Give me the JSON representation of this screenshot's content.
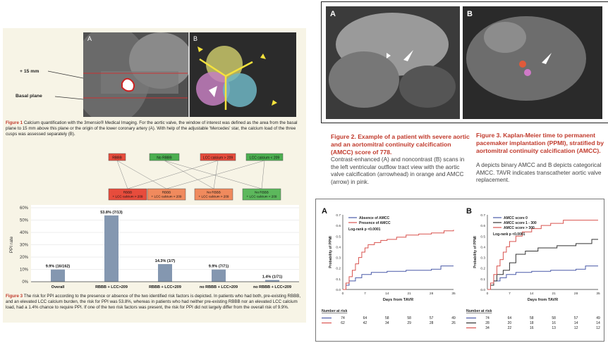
{
  "fig1": {
    "panel_a": "A",
    "panel_b": "B",
    "label_15mm": "+ 15 mm",
    "label_basal": "Basal plane",
    "caption_lead": "Figure 1",
    "caption": "Calcium quantification with the 3mensio® Medical Imaging. For the aortic valve, the window of interest was defined as the area from the basal plane to 15 mm above this plane or the origin of the lower coronary artery (A). With help of the adjustable 'Mercedes' star, the calcium load of the three cusps was assessed separately (B)."
  },
  "fig3left": {
    "tree_top": [
      "RBBB",
      "No RBBB",
      "LCC calcium > 209",
      "LCC calcium < 209"
    ],
    "tree_bottom": [
      "RBBB\n+ LCC calcium > 209",
      "RBBB\n+ LCC calcium < 209",
      "No RBBB\n+ LCC calcium > 209",
      "No RBBB\n+ LCC calcium < 209"
    ],
    "ylabel": "PPI rate",
    "caption_lead": "Figure 3",
    "caption": "The risk for PPI according to the presence or absence of the two identified risk factors is depicted. In patients who had both, pre-existing RBBB, and an elevated LCC calcium burden, the risk for PPI was 53.8%, whereas in patients who had neither pre-existing RBBB nor an elevated LCC calcium load, had a 1.4% chance to require PPI. If one of the two risk factors was present, the risk for PPI did not largely differ from the overall risk of 9.9%."
  },
  "fig2": {
    "panel_a": "A",
    "panel_b": "B",
    "title": "Figure 2. Example of a patient with severe aortic and an aortomitral continuity calcification (AMCC) score of 778.",
    "text": "Contrast-enhanced (A) and noncontrast (B) scans in the left ventricular outflow tract view with the aortic valve calcification (arrowhead) in orange and AMCC (arrow) in pink."
  },
  "fig3right": {
    "title": "Figure 3. Kaplan-Meier time to permanent pacemaker implantation (PPMI), stratified by aortomitral continuity calcification (AMCC).",
    "text": "A depicts binary AMCC and B depicts categorical AMCC. TAVR indicates transcatheter aortic valve replacement."
  },
  "km": {
    "logrank": "Log-rank p <0.0001",
    "nrisk_label": "Number at risk",
    "a_legend": [
      "Absence of AMCC",
      "Presence of AMCC"
    ],
    "b_legend": [
      "AMCC score 0",
      "AMCC score 1 - 300",
      "AMCC score > 300"
    ],
    "a_risk": [
      [
        "74",
        "64",
        "58",
        "58",
        "57",
        "49"
      ],
      [
        "62",
        "42",
        "34",
        "29",
        "28",
        "26"
      ]
    ],
    "b_risk": [
      [
        "74",
        "64",
        "58",
        "58",
        "57",
        "49"
      ],
      [
        "28",
        "20",
        "18",
        "16",
        "14",
        "14"
      ],
      [
        "34",
        "22",
        "16",
        "13",
        "12",
        "12"
      ]
    ]
  },
  "chart_data": [
    {
      "type": "bar",
      "categories": [
        "Overall",
        "RBBB + LCC>209",
        "RBBB + LCC<209",
        "no RBBB + LCC>209",
        "no RBBB + LCC<209"
      ],
      "values": [
        9.9,
        53.8,
        14.3,
        9.9,
        1.4
      ],
      "data_labels": [
        "9.9% (16/162)",
        "53.8% (7/13)",
        "14.3% (1/7)",
        "9.9% (7/71)",
        "1.4% (1/71)"
      ],
      "ylabel": "PPI rate",
      "yticks": [
        "0%",
        "10%",
        "20%",
        "30%",
        "40%",
        "50%",
        "60%"
      ],
      "ylim": [
        0,
        60
      ],
      "color": "#8497b0",
      "grid": true
    },
    {
      "type": "line",
      "panel": "A",
      "xlabel": "Days from TAVR",
      "ylabel": "Probability of PPMI",
      "xticks": [
        0,
        7,
        14,
        21,
        28,
        35
      ],
      "yticks": [
        0.0,
        0.1,
        0.2,
        0.3,
        0.4,
        0.5,
        0.6,
        0.7
      ],
      "xlim": [
        0,
        35
      ],
      "ylim": [
        0,
        0.7
      ],
      "series": [
        {
          "name": "Absence of AMCC",
          "color": "#4a5aa8",
          "x": [
            0,
            1,
            2,
            4,
            6,
            9,
            14,
            20,
            28,
            31,
            35
          ],
          "y": [
            0,
            0.04,
            0.08,
            0.11,
            0.14,
            0.16,
            0.17,
            0.18,
            0.19,
            0.22,
            0.22
          ]
        },
        {
          "name": "Presence of AMCC",
          "color": "#d9534f",
          "x": [
            0,
            1,
            2,
            3,
            4,
            5,
            6,
            7,
            8,
            10,
            12,
            14,
            17,
            20,
            24,
            28,
            32,
            35
          ],
          "y": [
            0,
            0.06,
            0.12,
            0.18,
            0.24,
            0.3,
            0.35,
            0.39,
            0.42,
            0.44,
            0.46,
            0.47,
            0.49,
            0.51,
            0.52,
            0.53,
            0.55,
            0.56
          ]
        }
      ]
    },
    {
      "type": "line",
      "panel": "B",
      "xlabel": "Days from TAVR",
      "ylabel": "Probability of PPMI",
      "xticks": [
        0,
        7,
        14,
        21,
        28,
        35
      ],
      "yticks": [
        0.0,
        0.1,
        0.2,
        0.3,
        0.4,
        0.5,
        0.6,
        0.7
      ],
      "xlim": [
        0,
        35
      ],
      "ylim": [
        0,
        0.7
      ],
      "series": [
        {
          "name": "AMCC score 0",
          "color": "#4a5aa8",
          "x": [
            0,
            1,
            2,
            4,
            6,
            9,
            14,
            20,
            28,
            31,
            35
          ],
          "y": [
            0,
            0.04,
            0.08,
            0.11,
            0.14,
            0.16,
            0.17,
            0.18,
            0.19,
            0.22,
            0.22
          ]
        },
        {
          "name": "AMCC score 1 - 300",
          "color": "#333333",
          "x": [
            0,
            1,
            2,
            3,
            5,
            7,
            9,
            12,
            16,
            22,
            28,
            33,
            35
          ],
          "y": [
            0,
            0.04,
            0.08,
            0.14,
            0.18,
            0.25,
            0.33,
            0.36,
            0.39,
            0.41,
            0.43,
            0.47,
            0.47
          ]
        },
        {
          "name": "AMCC score > 300",
          "color": "#d9534f",
          "x": [
            0,
            1,
            2,
            3,
            4,
            5,
            6,
            7,
            9,
            11,
            14,
            17,
            20,
            24,
            35
          ],
          "y": [
            0,
            0.06,
            0.14,
            0.22,
            0.28,
            0.35,
            0.4,
            0.45,
            0.5,
            0.54,
            0.57,
            0.6,
            0.62,
            0.65,
            0.65
          ]
        }
      ]
    }
  ]
}
